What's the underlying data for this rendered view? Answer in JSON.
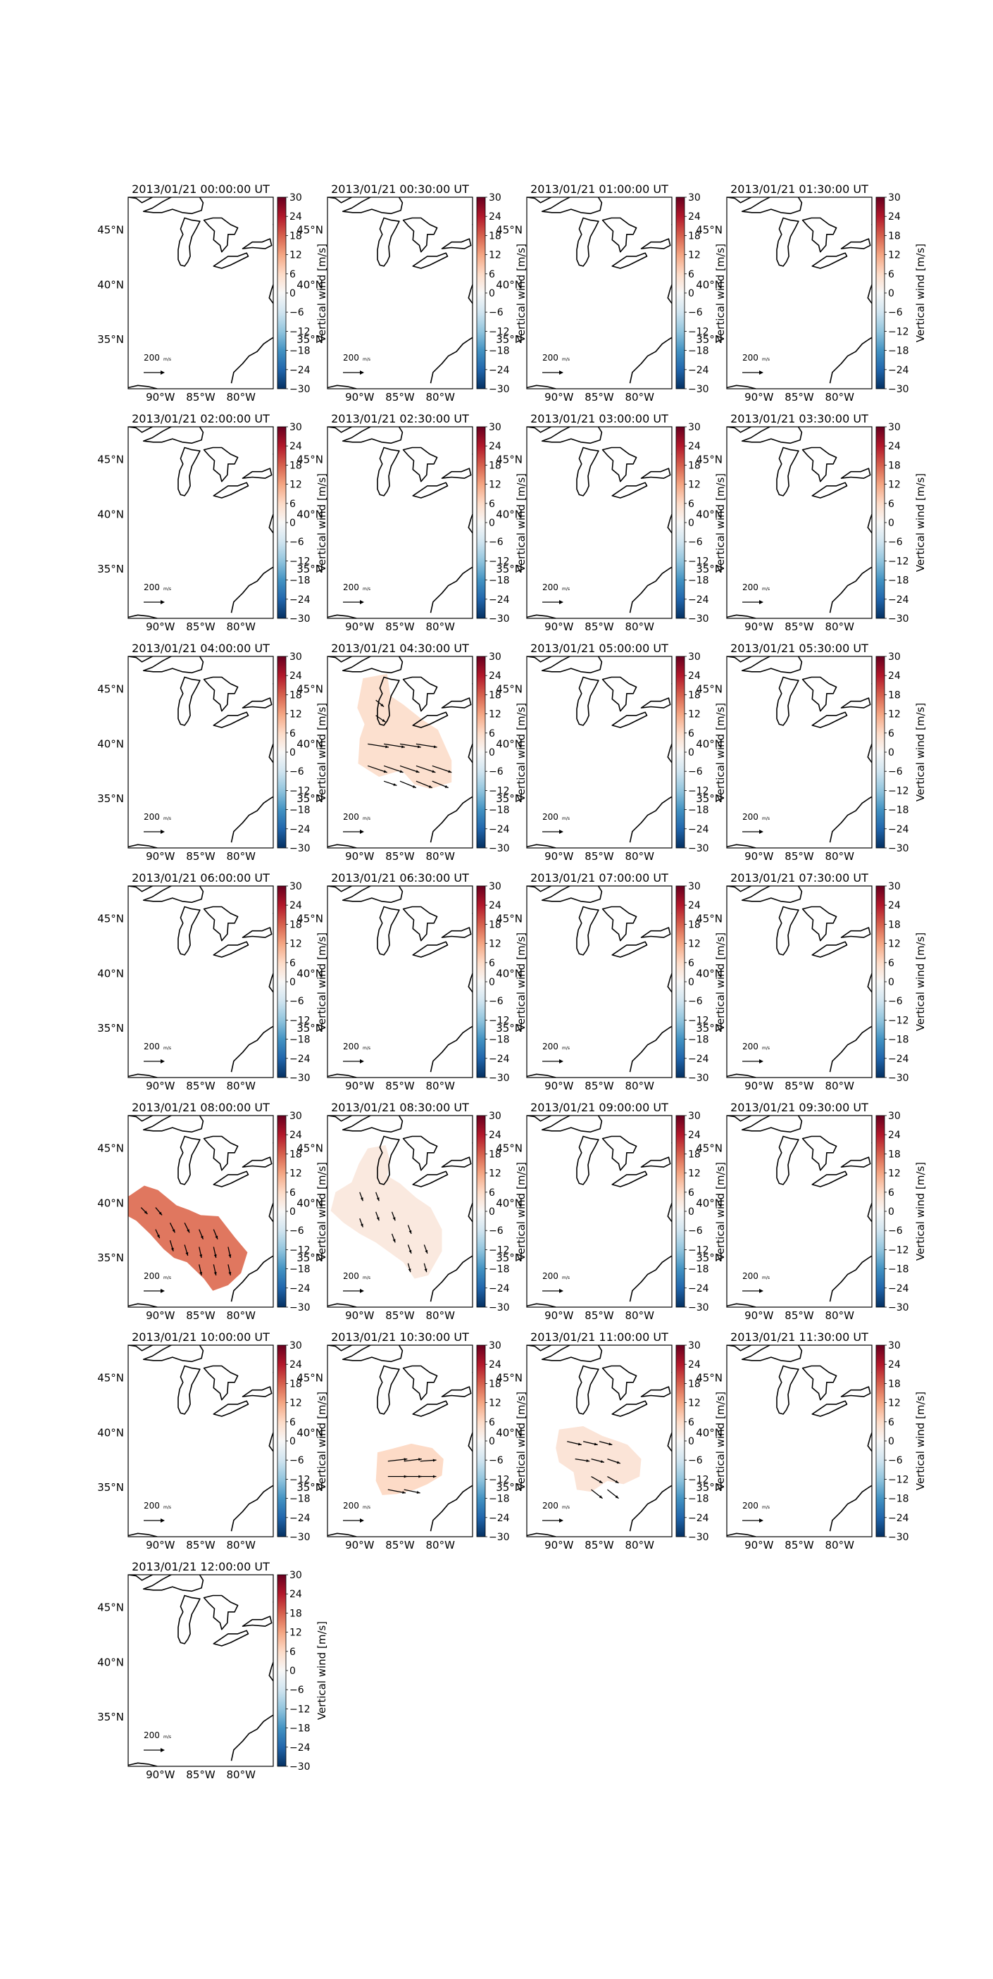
{
  "figure": {
    "colorbar": {
      "label": "Vertical wind [m/s]",
      "ticks": [
        "30",
        "24",
        "18",
        "12",
        "6",
        "0",
        "−6",
        "−12",
        "−18",
        "−24",
        "−30"
      ],
      "min": -30,
      "max": 30,
      "colormap": "RdBu_r"
    },
    "map": {
      "lat_ticks": [
        "45°N",
        "40°N",
        "35°N"
      ],
      "lon_ticks": [
        "90°W",
        "85°W",
        "80°W"
      ],
      "reference_arrow_label": "200",
      "reference_arrow_unit": "m/s"
    },
    "panels": [
      {
        "title": "2013/01/21 00:00:00 UT",
        "vertical_wind": null,
        "has_vectors": false
      },
      {
        "title": "2013/01/21 00:30:00 UT",
        "vertical_wind": null,
        "has_vectors": false
      },
      {
        "title": "2013/01/21 01:00:00 UT",
        "vertical_wind": null,
        "has_vectors": false
      },
      {
        "title": "2013/01/21 01:30:00 UT",
        "vertical_wind": null,
        "has_vectors": false
      },
      {
        "title": "2013/01/21 02:00:00 UT",
        "vertical_wind": null,
        "has_vectors": false
      },
      {
        "title": "2013/01/21 02:30:00 UT",
        "vertical_wind": null,
        "has_vectors": false
      },
      {
        "title": "2013/01/21 03:00:00 UT",
        "vertical_wind": null,
        "has_vectors": false
      },
      {
        "title": "2013/01/21 03:30:00 UT",
        "vertical_wind": null,
        "has_vectors": false
      },
      {
        "title": "2013/01/21 04:00:00 UT",
        "vertical_wind": null,
        "has_vectors": false
      },
      {
        "title": "2013/01/21 04:30:00 UT",
        "vertical_wind": 5,
        "has_vectors": true
      },
      {
        "title": "2013/01/21 05:00:00 UT",
        "vertical_wind": null,
        "has_vectors": false
      },
      {
        "title": "2013/01/21 05:30:00 UT",
        "vertical_wind": null,
        "has_vectors": false
      },
      {
        "title": "2013/01/21 06:00:00 UT",
        "vertical_wind": null,
        "has_vectors": false
      },
      {
        "title": "2013/01/21 06:30:00 UT",
        "vertical_wind": null,
        "has_vectors": false
      },
      {
        "title": "2013/01/21 07:00:00 UT",
        "vertical_wind": null,
        "has_vectors": false
      },
      {
        "title": "2013/01/21 07:30:00 UT",
        "vertical_wind": null,
        "has_vectors": false
      },
      {
        "title": "2013/01/21 08:00:00 UT",
        "vertical_wind": 16,
        "has_vectors": true
      },
      {
        "title": "2013/01/21 08:30:00 UT",
        "vertical_wind": 3,
        "has_vectors": true
      },
      {
        "title": "2013/01/21 09:00:00 UT",
        "vertical_wind": null,
        "has_vectors": false
      },
      {
        "title": "2013/01/21 09:30:00 UT",
        "vertical_wind": null,
        "has_vectors": false
      },
      {
        "title": "2013/01/21 10:00:00 UT",
        "vertical_wind": null,
        "has_vectors": false
      },
      {
        "title": "2013/01/21 10:30:00 UT",
        "vertical_wind": 6,
        "has_vectors": true
      },
      {
        "title": "2013/01/21 11:00:00 UT",
        "vertical_wind": 4,
        "has_vectors": true
      },
      {
        "title": "2013/01/21 11:30:00 UT",
        "vertical_wind": null,
        "has_vectors": false
      },
      {
        "title": "2013/01/21 12:00:00 UT",
        "vertical_wind": null,
        "has_vectors": false
      }
    ]
  }
}
